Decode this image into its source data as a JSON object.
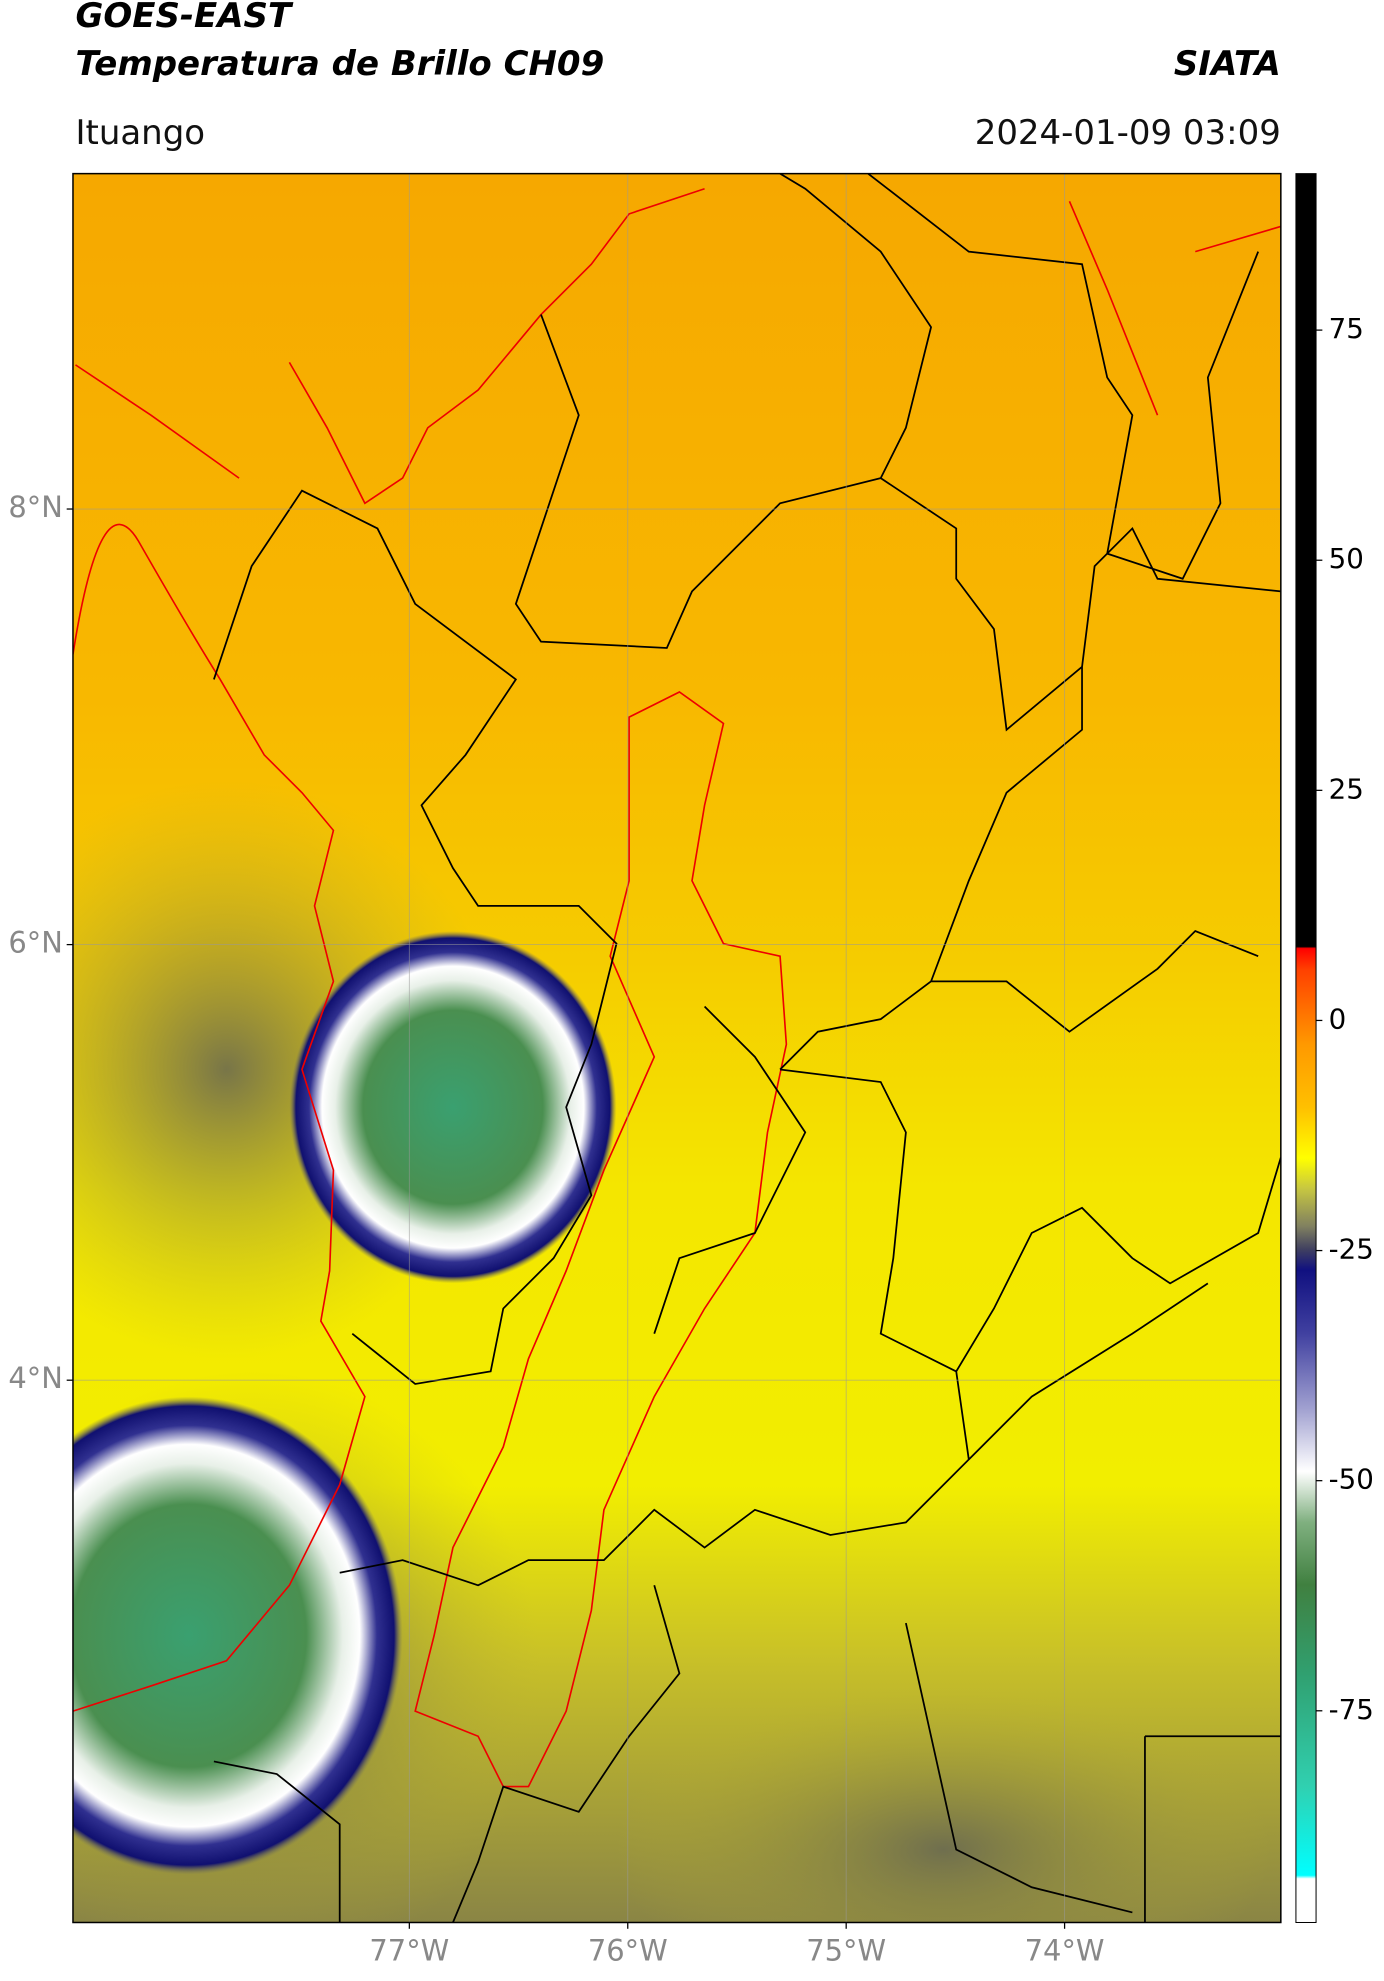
{
  "header": {
    "satellite": "GOES-EAST",
    "product": "Temperatura de Brillo CH09",
    "agency": "SIATA",
    "location": "Ituango",
    "datetime": "2024-01-09 03:09"
  },
  "map": {
    "latlim": [
      1.51,
      9.54
    ],
    "lonlim": [
      -78.54,
      -73.01
    ],
    "latticks": [
      {
        "value": 8,
        "label": "8°N"
      },
      {
        "value": 6,
        "label": "6°N"
      },
      {
        "value": 4,
        "label": "4°N"
      }
    ],
    "lonticks": [
      {
        "value": -77,
        "label": "77°W"
      },
      {
        "value": -76,
        "label": "76°W"
      },
      {
        "value": -75,
        "label": "75°W"
      },
      {
        "value": -74,
        "label": "74°W"
      }
    ],
    "grid": true
  },
  "colorbar": {
    "lim": [
      -98,
      92
    ],
    "ticks": [
      75,
      50,
      25,
      0,
      -25,
      -50,
      -75
    ]
  }
}
